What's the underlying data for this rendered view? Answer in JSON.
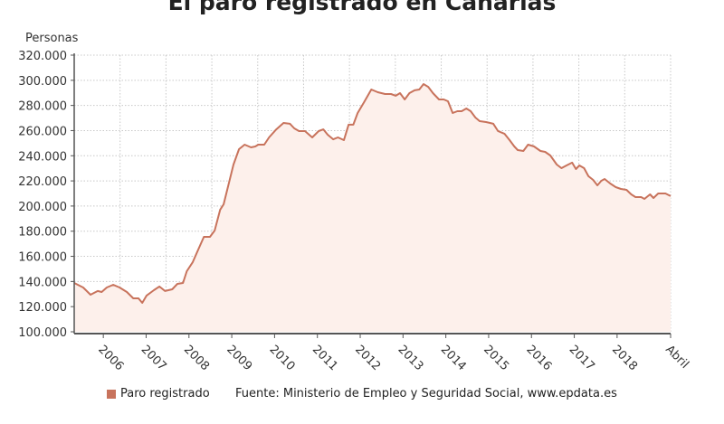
{
  "chart_data": {
    "type": "area",
    "title": "El paro registrado en Canarias",
    "ylabel": "Personas",
    "xlabel": "",
    "ylim": [
      100000,
      320000
    ],
    "yticks": [
      100000,
      120000,
      140000,
      160000,
      180000,
      200000,
      220000,
      240000,
      260000,
      280000,
      300000,
      320000
    ],
    "ytick_labels": [
      "100.000",
      "120.000",
      "140.000",
      "160.000",
      "180.000",
      "200.000",
      "220.000",
      "240.000",
      "260.000",
      "280.000",
      "300.000",
      "320.000"
    ],
    "xlim": [
      2005.32,
      2019.25
    ],
    "xticks": [
      2006,
      2007,
      2008,
      2009,
      2010,
      2011,
      2012,
      2013,
      2014,
      2015,
      2016,
      2017,
      2018,
      2019.25
    ],
    "xtick_labels": [
      "2006",
      "2007",
      "2008",
      "2009",
      "2010",
      "2011",
      "2012",
      "2013",
      "2014",
      "2015",
      "2016",
      "2017",
      "2018",
      "Abril"
    ],
    "grid": true,
    "legend_position": "bottom",
    "series": [
      {
        "name": "Paro registrado",
        "color": "#c8735c",
        "fill": "#fdf0eb",
        "x": [
          2005.32,
          2005.53,
          2005.7,
          2005.87,
          2005.96,
          2006.08,
          2006.23,
          2006.38,
          2006.55,
          2006.7,
          2006.82,
          2006.91,
          2007.01,
          2007.18,
          2007.31,
          2007.44,
          2007.61,
          2007.73,
          2007.86,
          2007.95,
          2008.09,
          2008.2,
          2008.35,
          2008.49,
          2008.6,
          2008.73,
          2008.81,
          2008.92,
          2009.04,
          2009.17,
          2009.3,
          2009.45,
          2009.55,
          2009.62,
          2009.76,
          2009.87,
          2010.04,
          2010.21,
          2010.36,
          2010.46,
          2010.57,
          2010.71,
          2010.88,
          2011.03,
          2011.14,
          2011.24,
          2011.37,
          2011.48,
          2011.62,
          2011.73,
          2011.84,
          2011.94,
          2012.09,
          2012.26,
          2012.41,
          2012.58,
          2012.72,
          2012.83,
          2012.93,
          2013.04,
          2013.15,
          2013.27,
          2013.38,
          2013.48,
          2013.59,
          2013.7,
          2013.84,
          2013.95,
          2014.05,
          2014.16,
          2014.27,
          2014.37,
          2014.48,
          2014.58,
          2014.69,
          2014.79,
          2014.94,
          2015.11,
          2015.22,
          2015.37,
          2015.49,
          2015.6,
          2015.68,
          2015.81,
          2015.92,
          2016.06,
          2016.21,
          2016.32,
          2016.44,
          2016.59,
          2016.7,
          2016.82,
          2016.95,
          2017.04,
          2017.12,
          2017.23,
          2017.33,
          2017.44,
          2017.54,
          2017.63,
          2017.71,
          2017.84,
          2017.97,
          2018.09,
          2018.22,
          2018.33,
          2018.43,
          2018.56,
          2018.64,
          2018.77,
          2018.85,
          2018.96,
          2019.13,
          2019.25
        ],
        "values": [
          138800,
          135200,
          129500,
          132400,
          131600,
          135200,
          137400,
          135200,
          131600,
          126600,
          126600,
          123000,
          128800,
          133100,
          136000,
          132400,
          133800,
          138100,
          138800,
          148200,
          155400,
          164000,
          175500,
          175500,
          180500,
          197100,
          201400,
          216500,
          233000,
          245200,
          248800,
          246700,
          247400,
          248800,
          248800,
          254600,
          261000,
          266100,
          265400,
          261800,
          259600,
          259600,
          254600,
          259600,
          261000,
          256700,
          253100,
          254600,
          252400,
          264700,
          264700,
          274000,
          282600,
          292700,
          290500,
          289100,
          289100,
          287700,
          289800,
          284800,
          289800,
          292000,
          292700,
          297000,
          294800,
          289800,
          284800,
          284800,
          283300,
          274000,
          275400,
          275400,
          277600,
          275400,
          270400,
          267500,
          266800,
          265400,
          259600,
          257500,
          252400,
          247400,
          244500,
          243800,
          248800,
          247400,
          243800,
          243100,
          240200,
          233000,
          230100,
          232300,
          234500,
          229400,
          232300,
          230100,
          223700,
          220800,
          216500,
          220100,
          221500,
          217900,
          215000,
          213600,
          212900,
          209300,
          207100,
          207100,
          205700,
          209300,
          206400,
          210000,
          210000,
          207900
        ]
      }
    ],
    "source": "Fuente: Ministerio de Empleo y Seguridad Social, www.epdata.es"
  }
}
